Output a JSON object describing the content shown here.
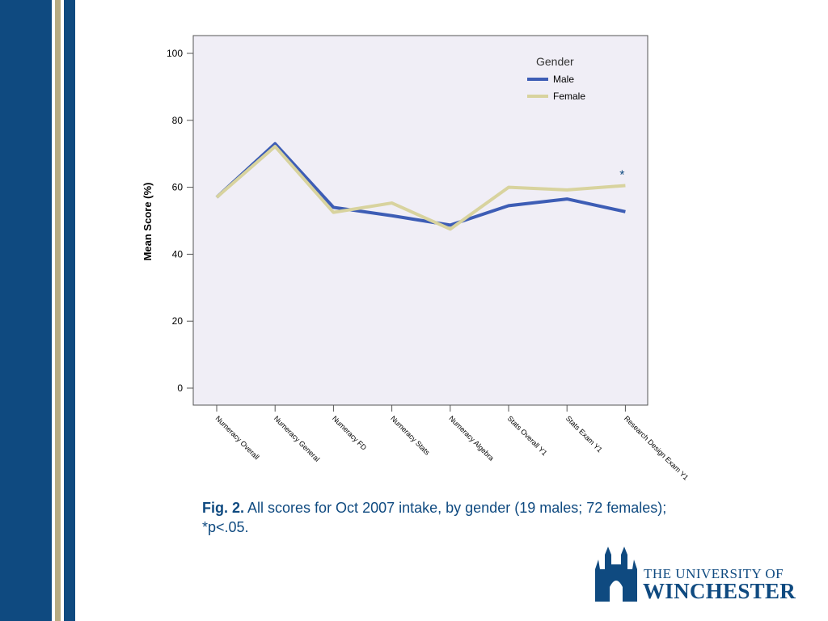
{
  "slide": {
    "caption_bold": "Fig. 2.",
    "caption_text": "All scores for Oct 2007 intake, by gender (19 males; 72 females); *p<.05.",
    "logo_line1": "THE UNIVERSITY OF",
    "logo_line2": "WINCHESTER"
  },
  "colors": {
    "brand_navy": "#0f4a80",
    "brand_tan": "#b7ab82",
    "plot_bg": "#f0eef6"
  },
  "chart_data": {
    "type": "line",
    "title": "",
    "xlabel": "",
    "ylabel": "Mean Score (%)",
    "ylim": [
      0,
      100
    ],
    "yticks": [
      0,
      20,
      40,
      60,
      80,
      100
    ],
    "grid": false,
    "legend": {
      "title": "Gender",
      "placement": "top-right"
    },
    "categories": [
      "Numeracy Overall",
      "Numeracy General",
      "Numeracy FD",
      "Numeracy Stats",
      "Numeracy Algebra",
      "Stats Overall Y1",
      "Stats Exam Y1",
      "Research Design Exam Y1"
    ],
    "series": [
      {
        "name": "Male",
        "color": "#3d5db5",
        "values": [
          57,
          73,
          54,
          51.5,
          48.7,
          54.5,
          56.5,
          52.7
        ]
      },
      {
        "name": "Female",
        "color": "#d8d39e",
        "values": [
          57,
          72.2,
          52.5,
          55.3,
          47.5,
          60,
          59.2,
          60.5
        ]
      }
    ],
    "annotations": [
      {
        "text": "*",
        "category_index": 7
      }
    ]
  }
}
